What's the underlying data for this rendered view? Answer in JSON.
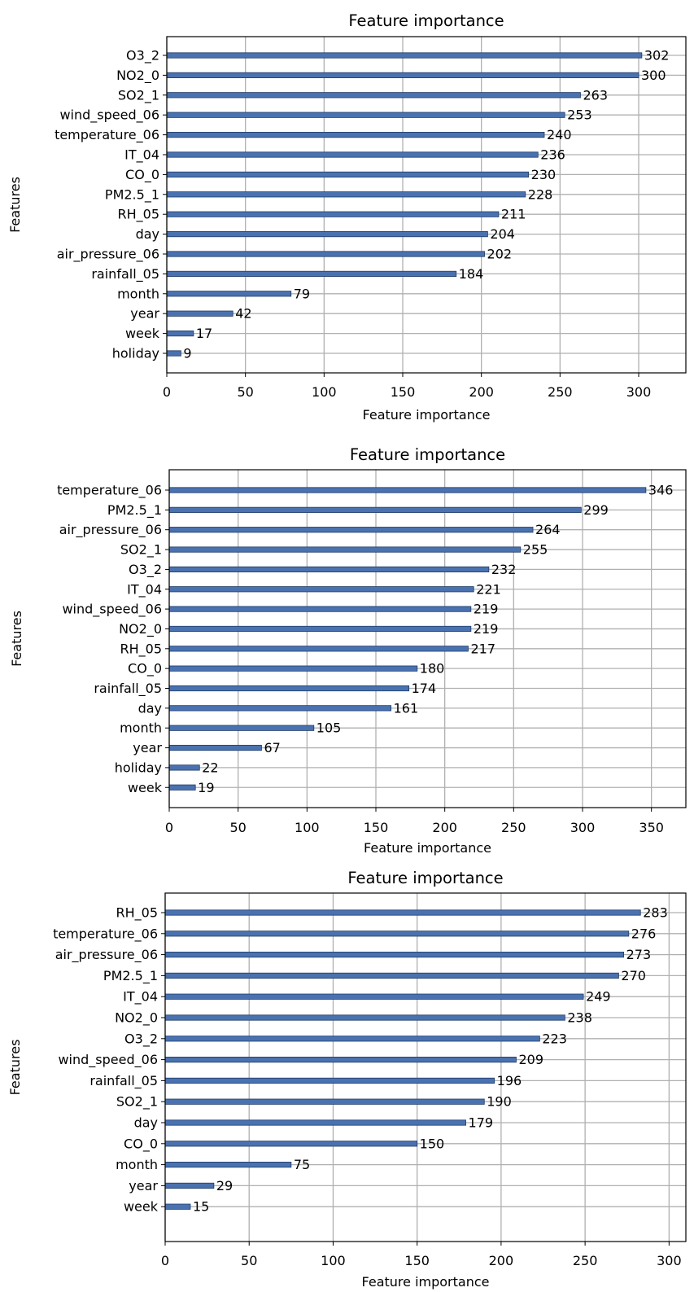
{
  "colors": {
    "bar": "#4a72b0",
    "bar_edge": "#1f3b66",
    "grid": "#b0b0b0",
    "axes": "#000000"
  },
  "chart_data": [
    {
      "type": "bar",
      "orientation": "horizontal",
      "title": "Feature importance",
      "xlabel": "Feature importance",
      "ylabel": "Features",
      "xlim": [
        0,
        330
      ],
      "xticks": [
        0,
        50,
        100,
        150,
        200,
        250,
        300
      ],
      "grid": true,
      "categories": [
        "O3_2",
        "NO2_0",
        "SO2_1",
        "wind_speed_06",
        "temperature_06",
        "IT_04",
        "CO_0",
        "PM2.5_1",
        "RH_05",
        "day",
        "air_pressure_06",
        "rainfall_05",
        "month",
        "year",
        "week",
        "holiday"
      ],
      "values": [
        302,
        300,
        263,
        253,
        240,
        236,
        230,
        228,
        211,
        204,
        202,
        184,
        79,
        42,
        17,
        9
      ]
    },
    {
      "type": "bar",
      "orientation": "horizontal",
      "title": "Feature importance",
      "xlabel": "Feature importance",
      "ylabel": "Features",
      "xlim": [
        0,
        375
      ],
      "xticks": [
        0,
        50,
        100,
        150,
        200,
        250,
        300,
        350
      ],
      "grid": true,
      "categories": [
        "temperature_06",
        "PM2.5_1",
        "air_pressure_06",
        "SO2_1",
        "O3_2",
        "IT_04",
        "wind_speed_06",
        "NO2_0",
        "RH_05",
        "CO_0",
        "rainfall_05",
        "day",
        "month",
        "year",
        "holiday",
        "week"
      ],
      "values": [
        346,
        299,
        264,
        255,
        232,
        221,
        219,
        219,
        217,
        180,
        174,
        161,
        105,
        67,
        22,
        19
      ]
    },
    {
      "type": "bar",
      "orientation": "horizontal",
      "title": "Feature importance",
      "xlabel": "Feature importance",
      "ylabel": "Features",
      "xlim": [
        0,
        310
      ],
      "xticks": [
        0,
        50,
        100,
        150,
        200,
        250,
        300
      ],
      "grid": true,
      "categories": [
        "RH_05",
        "temperature_06",
        "air_pressure_06",
        "PM2.5_1",
        "IT_04",
        "NO2_0",
        "O3_2",
        "wind_speed_06",
        "rainfall_05",
        "SO2_1",
        "day",
        "CO_0",
        "month",
        "year",
        "week"
      ],
      "values": [
        283,
        276,
        273,
        270,
        249,
        238,
        223,
        209,
        196,
        190,
        179,
        150,
        75,
        29,
        15
      ]
    }
  ]
}
